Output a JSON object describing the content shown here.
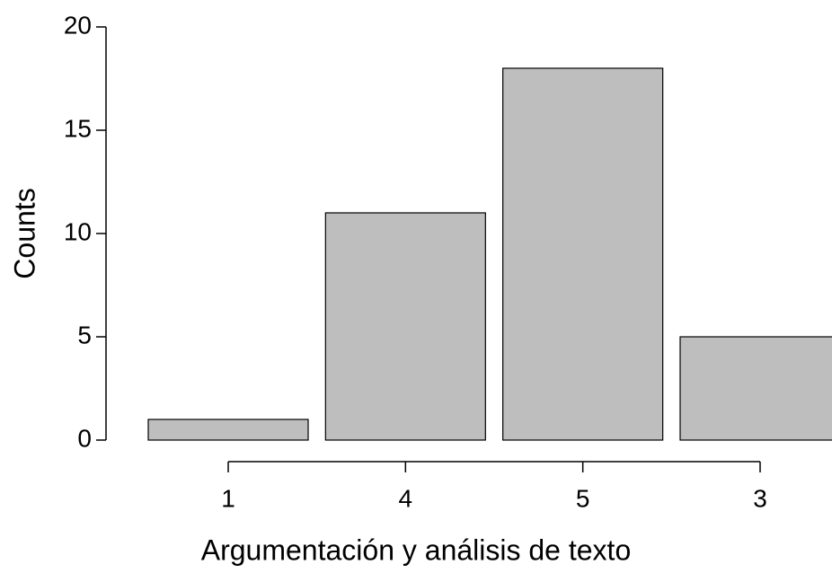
{
  "chart_data": {
    "type": "bar",
    "x_label": "Argumentación y análisis de texto",
    "y_label": "Counts",
    "categories": [
      "1",
      "4",
      "5",
      "3"
    ],
    "values": [
      1,
      11,
      18,
      5
    ],
    "color": "#bebebe",
    "ylim": [
      0,
      20
    ],
    "yticks": [
      0,
      5,
      10,
      15,
      20
    ],
    "grid": false
  }
}
